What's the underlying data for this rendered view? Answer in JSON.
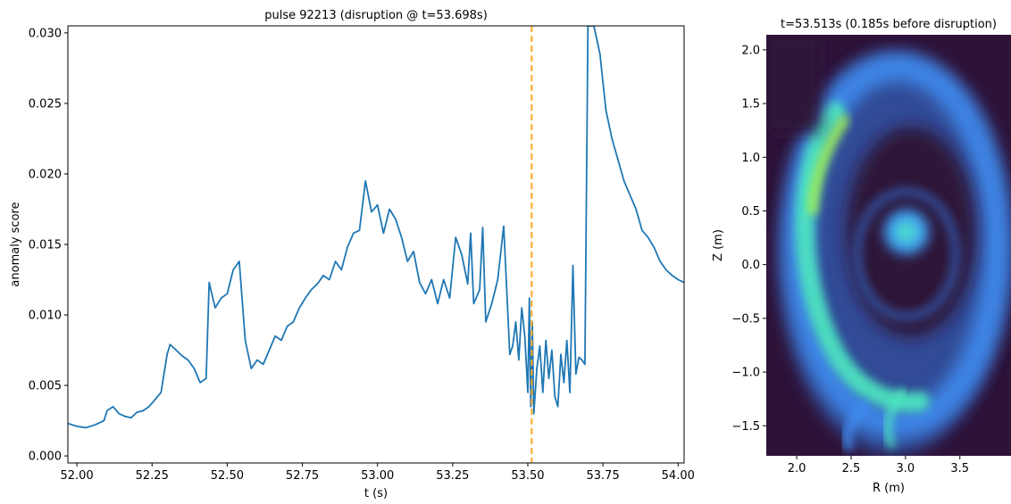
{
  "chart_data": [
    {
      "type": "line",
      "title": "pulse 92213 (disruption @ t=53.698s)",
      "xlabel": "t (s)",
      "ylabel": "anomaly score",
      "xlim": [
        51.97,
        54.02
      ],
      "ylim": [
        -0.0005,
        0.0305
      ],
      "xticks": [
        "52.00",
        "52.25",
        "52.50",
        "52.75",
        "53.00",
        "53.25",
        "53.50",
        "53.75",
        "54.00"
      ],
      "yticks": [
        "0.000",
        "0.005",
        "0.010",
        "0.015",
        "0.020",
        "0.025",
        "0.030"
      ],
      "grid": false,
      "series_color": "#1f77b4",
      "vline": {
        "x": 53.513,
        "color": "#ffa726",
        "style": "dashed"
      },
      "series": [
        {
          "x": [
            51.97,
            52.0,
            52.03,
            52.06,
            52.09,
            52.1,
            52.12,
            52.14,
            52.16,
            52.18,
            52.2,
            52.22,
            52.24,
            52.26,
            52.28,
            52.3,
            52.31,
            52.33,
            52.35,
            52.37,
            52.39,
            52.41,
            52.43,
            52.44,
            52.46,
            52.48,
            52.5,
            52.52,
            52.54,
            52.56,
            52.58,
            52.6,
            52.62,
            52.64,
            52.66,
            52.68,
            52.7,
            52.72,
            52.74,
            52.76,
            52.78,
            52.8,
            52.82,
            52.84,
            52.86,
            52.88,
            52.9,
            52.92,
            52.94,
            52.96,
            52.98,
            53.0,
            53.02,
            53.04,
            53.06,
            53.08,
            53.1,
            53.12,
            53.14,
            53.16,
            53.18,
            53.2,
            53.22,
            53.24,
            53.26,
            53.28,
            53.3,
            53.31,
            53.32,
            53.34,
            53.35,
            53.36,
            53.38,
            53.4,
            53.42,
            53.44,
            53.45,
            53.46,
            53.47,
            53.48,
            53.49,
            53.5,
            53.505,
            53.51,
            53.515,
            53.52,
            53.53,
            53.54,
            53.55,
            53.56,
            53.57,
            53.58,
            53.59,
            53.6,
            53.61,
            53.62,
            53.63,
            53.64,
            53.65,
            53.66,
            53.67,
            53.68,
            53.69,
            53.7,
            53.71,
            53.72,
            53.74,
            53.75,
            53.76,
            53.78,
            53.8,
            53.82,
            53.84,
            53.86,
            53.88,
            53.9,
            53.92,
            53.94,
            53.96,
            53.98,
            54.0,
            54.02
          ],
          "values": [
            0.0023,
            0.0021,
            0.002,
            0.0022,
            0.0025,
            0.0032,
            0.0035,
            0.003,
            0.0028,
            0.0027,
            0.0031,
            0.0032,
            0.0035,
            0.004,
            0.0045,
            0.0072,
            0.0079,
            0.0075,
            0.0071,
            0.0068,
            0.0062,
            0.0052,
            0.0055,
            0.0123,
            0.0105,
            0.0112,
            0.0115,
            0.0132,
            0.0138,
            0.0082,
            0.0062,
            0.0068,
            0.0065,
            0.0075,
            0.0085,
            0.0082,
            0.0092,
            0.0095,
            0.0105,
            0.0112,
            0.0118,
            0.0122,
            0.0128,
            0.0125,
            0.0138,
            0.0132,
            0.0148,
            0.0158,
            0.016,
            0.0195,
            0.0173,
            0.0178,
            0.0158,
            0.0175,
            0.0168,
            0.0155,
            0.0138,
            0.0145,
            0.0123,
            0.0115,
            0.0125,
            0.0108,
            0.0125,
            0.0112,
            0.0155,
            0.0143,
            0.0122,
            0.0158,
            0.0108,
            0.0118,
            0.0162,
            0.0095,
            0.0108,
            0.0125,
            0.0163,
            0.0072,
            0.0078,
            0.0095,
            0.0068,
            0.0105,
            0.0085,
            0.0045,
            0.0112,
            0.0035,
            0.0095,
            0.003,
            0.0062,
            0.0078,
            0.0045,
            0.0082,
            0.0055,
            0.0075,
            0.0042,
            0.0035,
            0.0072,
            0.0052,
            0.0082,
            0.0045,
            0.0135,
            0.0058,
            0.007,
            0.0068,
            0.0065,
            0.0305,
            0.0305,
            0.0305,
            0.0285,
            0.0265,
            0.0245,
            0.0225,
            0.021,
            0.0195,
            0.0185,
            0.0175,
            0.016,
            0.0155,
            0.0148,
            0.0138,
            0.0132,
            0.0128,
            0.0125,
            0.0123
          ]
        }
      ]
    },
    {
      "type": "heatmap",
      "title": "t=53.513s (0.185s before disruption)",
      "xlabel": "R (m)",
      "ylabel": "Z (m)",
      "xlim": [
        1.72,
        3.97
      ],
      "ylim": [
        -1.78,
        2.14
      ],
      "xticks": [
        "2.0",
        "2.5",
        "3.0",
        "3.5"
      ],
      "yticks": [
        "2.0",
        "1.5",
        "1.0",
        "0.5",
        "0.0",
        "−0.5",
        "−1.0",
        "−1.5"
      ],
      "colormap": [
        "#2e1238",
        "#31509c",
        "#3f8cf0",
        "#4de7c0",
        "#a8f549"
      ]
    }
  ]
}
